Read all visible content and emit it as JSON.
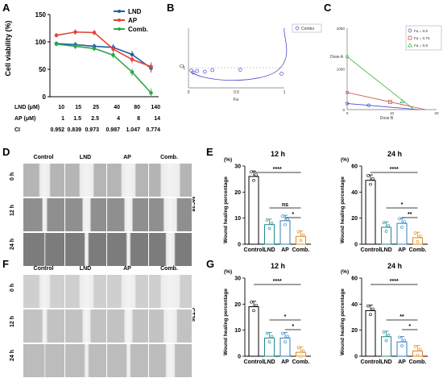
{
  "panels": {
    "A": "A",
    "B": "B",
    "C": "C",
    "D": "D",
    "E": "E",
    "F": "F",
    "G": "G"
  },
  "panel_A": {
    "ylabel": "Cell viability (%)",
    "yticks": [
      "0",
      "50",
      "100",
      "150"
    ],
    "legend": [
      "LND",
      "AP",
      "Comb."
    ],
    "colors": {
      "LND": "#1f5fa8",
      "AP": "#e0463a",
      "Comb.": "#2aa84a"
    },
    "table": {
      "row_labels": [
        "LND (μM)",
        "AP (μM)",
        "CI"
      ],
      "LND": [
        "10",
        "15",
        "25",
        "40",
        "80",
        "140"
      ],
      "AP": [
        "1",
        "1.5",
        "2.5",
        "4",
        "8",
        "14"
      ],
      "CI": [
        "0.952",
        "0.839",
        "0.973",
        "0.987",
        "1.047",
        "0.774"
      ]
    }
  },
  "panel_B": {
    "ylabel": "CI",
    "xlabel": "Fa",
    "yticks": [
      "1"
    ],
    "xticks": [
      "0",
      "0.5",
      "1"
    ],
    "legend": "Combo"
  },
  "panel_C": {
    "ylabel": "Dose A",
    "xlabel": "Dose B",
    "yticks": [
      "0",
      "1000",
      "2000"
    ],
    "xticks": [
      "0",
      "10",
      "20"
    ],
    "legend": [
      "Fa = 0.5",
      "Fa = 0.75",
      "Fa = 0.9"
    ]
  },
  "panel_D": {
    "columns": [
      "Control",
      "LND",
      "AP",
      "Comb."
    ],
    "rows": [
      "0 h",
      "12 h",
      "24 h"
    ],
    "cell_line": "MC38"
  },
  "panel_F": {
    "columns": [
      "Control",
      "LND",
      "AP",
      "Comb."
    ],
    "rows": [
      "0 h",
      "12 h",
      "24 h"
    ],
    "cell_line": "CT26"
  },
  "panel_E": {
    "ylabel": "Wound healing percentage",
    "unit": "(%)",
    "left": {
      "title": "12 h",
      "yticks": [
        "0",
        "10",
        "20",
        "30"
      ],
      "sig": [
        "****",
        "ns",
        "*"
      ]
    },
    "right": {
      "title": "24 h",
      "yticks": [
        "0",
        "20",
        "40",
        "60"
      ],
      "sig": [
        "****",
        "*",
        "**"
      ]
    },
    "categories": [
      "Control",
      "LND",
      "AP",
      "Comb."
    ]
  },
  "panel_G": {
    "ylabel": "Wound healing percentage",
    "unit": "(%)",
    "left": {
      "title": "12 h",
      "yticks": [
        "0",
        "10",
        "20",
        "30"
      ],
      "sig": [
        "****",
        "*",
        "*"
      ]
    },
    "right": {
      "title": "24 h",
      "yticks": [
        "0",
        "20",
        "40",
        "60"
      ],
      "sig": [
        "****",
        "**",
        "*"
      ]
    },
    "categories": [
      "Control",
      "LND",
      "AP",
      "Comb."
    ]
  },
  "chart_data": [
    {
      "type": "line",
      "id": "A",
      "x": [
        "10",
        "15",
        "25",
        "40",
        "80",
        "140"
      ],
      "ylim": [
        0,
        150
      ],
      "series": [
        {
          "name": "LND",
          "values": [
            97,
            95,
            92,
            90,
            77,
            52
          ]
        },
        {
          "name": "AP",
          "values": [
            112,
            118,
            117,
            87,
            68,
            55
          ]
        },
        {
          "name": "Comb.",
          "values": [
            96,
            92,
            88,
            76,
            45,
            7
          ]
        }
      ]
    },
    {
      "type": "scatter",
      "id": "B",
      "xlim": [
        0,
        1
      ],
      "series": [
        {
          "name": "Combo",
          "x": [
            0.03,
            0.05,
            0.09,
            0.17,
            0.25,
            0.54,
            0.97
          ],
          "y": [
            0.86,
            0.76,
            0.84,
            0.8,
            0.88,
            0.9,
            0.7
          ]
        }
      ]
    },
    {
      "type": "line",
      "id": "C",
      "xlim": [
        0,
        20
      ],
      "ylim": [
        0,
        2000
      ],
      "series": [
        {
          "name": "Fa = 0.5",
          "x": [
            0,
            16
          ],
          "y": [
            150,
            0
          ]
        },
        {
          "name": "Fa = 0.75",
          "x": [
            0,
            17.5
          ],
          "y": [
            420,
            0
          ]
        },
        {
          "name": "Fa = 0.9",
          "x": [
            0,
            15
          ],
          "y": [
            1300,
            0
          ]
        }
      ]
    },
    {
      "type": "bar",
      "id": "E-12h",
      "categories": [
        "Control",
        "LND",
        "AP",
        "Comb."
      ],
      "values": [
        26,
        7.5,
        9,
        3
      ],
      "ylim": [
        0,
        30
      ]
    },
    {
      "type": "bar",
      "id": "E-24h",
      "categories": [
        "Control",
        "LND",
        "AP",
        "Comb."
      ],
      "values": [
        49,
        13,
        16,
        5
      ],
      "ylim": [
        0,
        60
      ]
    },
    {
      "type": "bar",
      "id": "G-12h",
      "categories": [
        "Control",
        "LND",
        "AP",
        "Comb."
      ],
      "values": [
        19,
        7,
        7,
        1.5
      ],
      "ylim": [
        0,
        30
      ]
    },
    {
      "type": "bar",
      "id": "G-24h",
      "categories": [
        "Control",
        "LND",
        "AP",
        "Comb."
      ],
      "values": [
        35,
        15,
        11,
        4
      ],
      "ylim": [
        0,
        60
      ]
    }
  ]
}
